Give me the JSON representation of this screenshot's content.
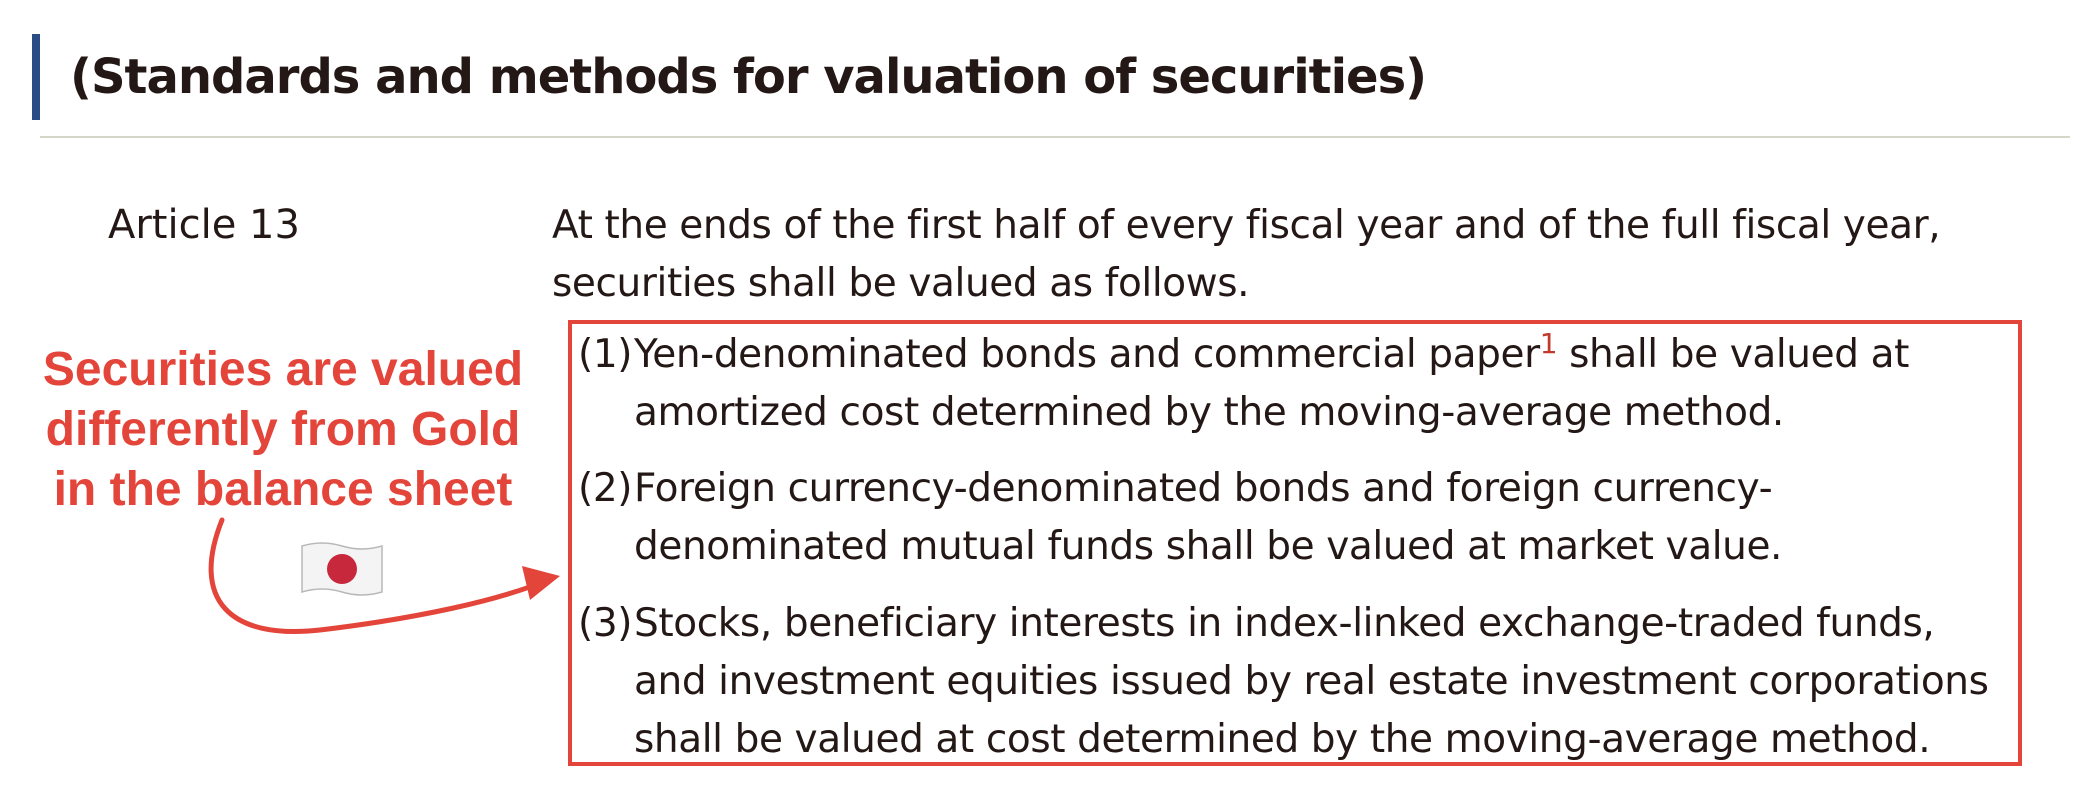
{
  "section": {
    "heading": "(Standards and methods for valuation of securities)"
  },
  "article": {
    "label": "Article 13",
    "intro": "At the ends of the first half of every fiscal year and of the full fiscal year, securities shall be valued as follows.",
    "items": [
      {
        "number": "(1)",
        "text_before": "Yen-denominated bonds and commercial paper",
        "footnote": "1",
        "text_after": " shall be valued at amortized cost determined by the moving-average method."
      },
      {
        "number": "(2)",
        "text": "Foreign currency-denominated bonds and foreign currency-denominated mutual funds shall be valued at market value."
      },
      {
        "number": "(3)",
        "text": "Stocks, beneficiary interests in index-linked exchange-traded funds, and investment equities issued by real estate investment corporations shall be valued at cost determined by the moving-average method."
      }
    ]
  },
  "annotation": {
    "text": "Securities are valued differently from Gold in the balance sheet",
    "icon": "japan-flag-icon",
    "color": "#e3453a"
  },
  "colors": {
    "heading_bar": "#2b4d86",
    "accent": "#e3453a",
    "text": "#231815"
  }
}
